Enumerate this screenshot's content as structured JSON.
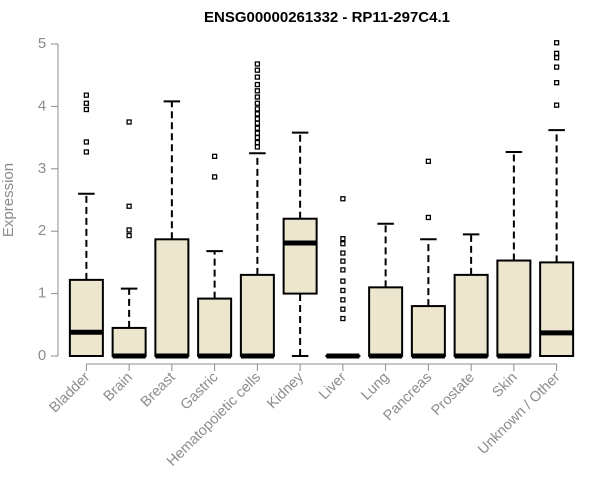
{
  "colors": {
    "box_fill": "#ede6cf",
    "box_stroke": "#000000",
    "axis": "#8c8c8c",
    "median": "#000000"
  },
  "chart_data": {
    "type": "box",
    "title": "ENSG00000261332 - RP11-297C4.1",
    "xlabel": "",
    "ylabel": "Expression",
    "ylim": [
      0,
      5
    ],
    "yticks": [
      0,
      1,
      2,
      3,
      4,
      5
    ],
    "grid": false,
    "categories": [
      "Bladder",
      "Brain",
      "Breast",
      "Gastric",
      "Hematopoietic cells",
      "Kidney",
      "Liver",
      "Lung",
      "Pancreas",
      "Prostate",
      "Skin",
      "Unknown / Other"
    ],
    "boxes": [
      {
        "min": 0,
        "q1": 0,
        "median": 0.38,
        "q3": 1.22,
        "max": 2.6,
        "outliers": [
          3.27,
          3.43,
          3.95,
          4.05,
          4.18
        ]
      },
      {
        "min": 0,
        "q1": 0,
        "median": 0,
        "q3": 0.45,
        "max": 1.08,
        "outliers": [
          1.93,
          2.02,
          2.4,
          3.75
        ]
      },
      {
        "min": 0,
        "q1": 0,
        "median": 0,
        "q3": 1.87,
        "max": 4.08,
        "outliers": []
      },
      {
        "min": 0,
        "q1": 0,
        "median": 0,
        "q3": 0.92,
        "max": 1.68,
        "outliers": [
          2.87,
          3.2
        ]
      },
      {
        "min": 0,
        "q1": 0,
        "median": 0,
        "q3": 1.3,
        "max": 3.25,
        "outliers": [
          3.35,
          3.42,
          3.5,
          3.57,
          3.65,
          3.73,
          3.8,
          3.88,
          3.96,
          4.05,
          4.15,
          4.25,
          4.35,
          4.47,
          4.58,
          4.68
        ]
      },
      {
        "min": 0,
        "q1": 1.0,
        "median": 1.81,
        "q3": 2.2,
        "max": 3.58,
        "outliers": []
      },
      {
        "min": 0,
        "q1": 0,
        "median": 0,
        "q3": 0,
        "max": 0,
        "outliers": [
          0.6,
          0.75,
          0.9,
          1.05,
          1.2,
          1.38,
          1.52,
          1.65,
          1.8,
          1.88,
          2.52
        ]
      },
      {
        "min": 0,
        "q1": 0,
        "median": 0,
        "q3": 1.1,
        "max": 2.12,
        "outliers": []
      },
      {
        "min": 0,
        "q1": 0,
        "median": 0,
        "q3": 0.8,
        "max": 1.87,
        "outliers": [
          2.22,
          3.12
        ]
      },
      {
        "min": 0,
        "q1": 0,
        "median": 0,
        "q3": 1.3,
        "max": 1.95,
        "outliers": []
      },
      {
        "min": 0,
        "q1": 0,
        "median": 0,
        "q3": 1.53,
        "max": 3.27,
        "outliers": []
      },
      {
        "min": 0,
        "q1": 0,
        "median": 0.37,
        "q3": 1.5,
        "max": 3.62,
        "outliers": [
          4.02,
          4.38,
          4.63,
          4.78,
          4.85,
          5.02
        ]
      }
    ]
  }
}
